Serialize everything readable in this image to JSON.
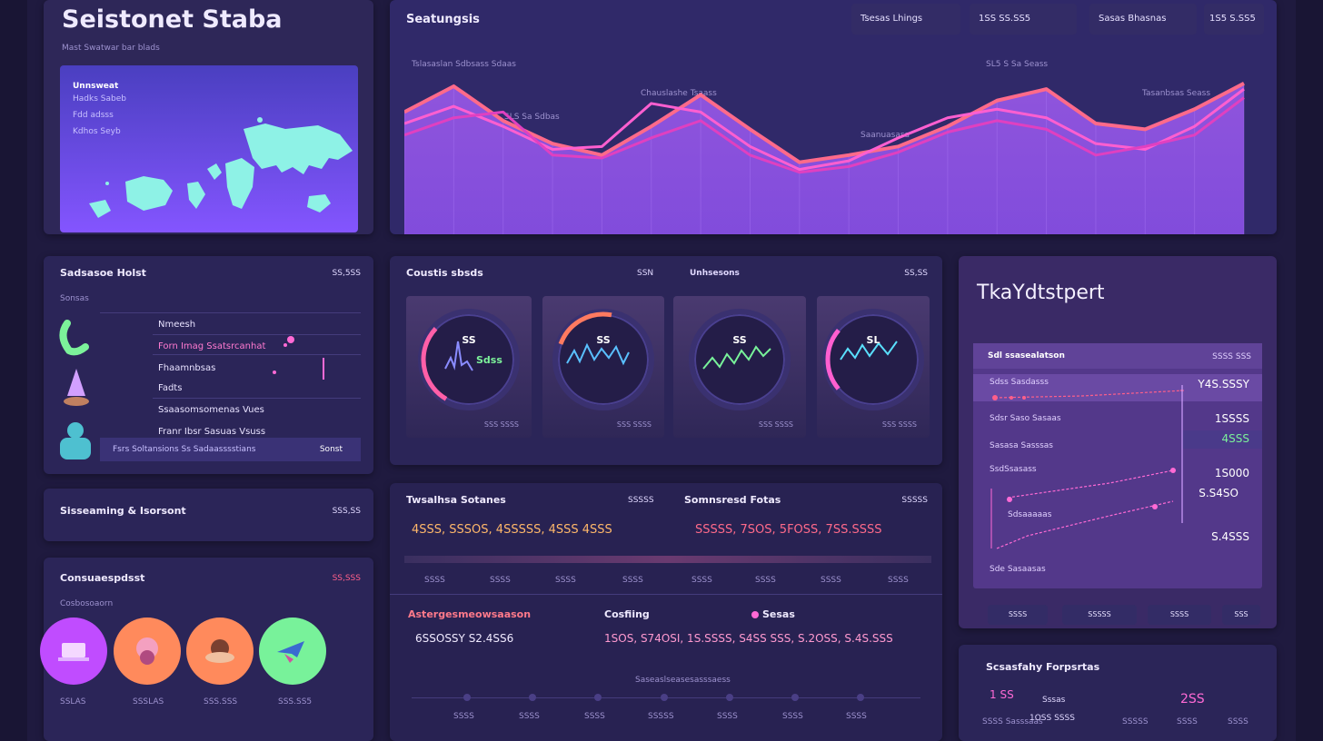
{
  "colors": {
    "accent_pink": "#ff5fa8",
    "accent_orange": "#ff8a5c",
    "accent_green": "#78f29a",
    "accent_purple": "#c04cff",
    "panel": "#2b2558"
  },
  "header": {
    "title": "Seistonet Staba",
    "subtitle": "Mast Swatwar bar blads"
  },
  "map_card": {
    "title": "Unnsweat",
    "lines": [
      "Hadks Sabeb",
      "Fdd adsss",
      "Kdhos Seyb"
    ],
    "icon": "world-map-icon"
  },
  "main_chart": {
    "title": "Seatungsis",
    "chips": [
      "Tsesas Lhings",
      "1SS SS.SS5",
      "Sasas Bhasnas",
      "1S5 S.SS5"
    ],
    "annotations": [
      "Tslasaslan Sdbsass Sdaas",
      "SLS Sa Sdbas",
      "Chauslashe Tsaass",
      "SL5 S Sa Seass",
      "Tasanbsas Seass",
      "Saanuasasa"
    ]
  },
  "chart_data": [
    {
      "type": "line",
      "x": [
        1,
        2,
        3,
        4,
        5,
        6,
        7,
        8,
        9,
        10,
        11,
        12,
        13,
        14,
        15,
        16,
        17,
        18
      ],
      "series": [
        {
          "values": [
            70,
            88,
            64,
            48,
            40,
            60,
            82,
            58,
            35,
            40,
            46,
            60,
            78,
            86,
            62,
            58,
            72,
            90
          ]
        },
        {
          "values": [
            62,
            74,
            60,
            44,
            46,
            76,
            70,
            46,
            30,
            36,
            52,
            66,
            72,
            66,
            48,
            44,
            60,
            86
          ]
        },
        {
          "values": [
            54,
            66,
            70,
            40,
            38,
            52,
            64,
            40,
            28,
            32,
            42,
            56,
            64,
            58,
            40,
            46,
            54,
            80
          ]
        }
      ],
      "ylim": [
        0,
        100
      ]
    }
  ],
  "contacts": {
    "title": "Sadsasoe Holst",
    "value": "SS,5SS",
    "sub": "Sonsas",
    "rows": [
      "Nmeesh",
      "Forn Imag Ssatsrcanhat",
      "Fhaamnbsas",
      "Fadts",
      "Ssaasomsomenas Vues",
      "Franr Ibsr Sasuas Vsuss",
      "Fsrs Soltansions Ss Sadaasssstians"
    ],
    "badge": "Sonst",
    "icons": [
      "headset-icon",
      "pen-icon",
      "person-icon"
    ]
  },
  "streaming": {
    "title": "Sisseaming & Isorsont",
    "value": "SSS,SS"
  },
  "consumer": {
    "title": "Consuaespdsst",
    "sub": "Cosbosoaorn",
    "value": "SS,SSS",
    "items": [
      {
        "label": "SSLAS",
        "icon": "laptop-icon"
      },
      {
        "label": "SSSLAS",
        "icon": "gift-icon"
      },
      {
        "label": "SSS.SSS",
        "icon": "food-icon"
      },
      {
        "label": "SSS.SS5",
        "icon": "plane-icon"
      }
    ]
  },
  "gauges": {
    "title": "Coustis sbsds",
    "v1": "SSN",
    "v2": "Unhsesons",
    "v3": "SS,SS",
    "cards": [
      {
        "value": "SS",
        "extra": "Sdss",
        "foot": "SSS SSSS"
      },
      {
        "value": "SS",
        "extra": "",
        "foot": "SSS SSSS"
      },
      {
        "value": "SS",
        "extra": "",
        "foot": "SSS SSSS"
      },
      {
        "value": "SL",
        "extra": "",
        "foot": "SSS SSSS"
      }
    ]
  },
  "trading": {
    "left_title": "Twsalhsa Sotanes",
    "left_val": "SSSSS",
    "left_nums": "4SSS, SSSOS, 4SSSSS, 4SSS 4SSS",
    "right_title": "Somnsresd Fotas",
    "right_val": "SSSSS",
    "right_nums": "SSSSS, 7SOS, 5FOSS, 7SS.SSSS",
    "ticks": [
      "SSSS",
      "SSSS",
      "SSSS",
      "SSSS",
      "SSSS",
      "SSSS",
      "SSSS",
      "SSSS"
    ]
  },
  "bottom_table": {
    "h1": "Astergesmeowsaason",
    "h2": "Cosfiing",
    "h3": "Sesas",
    "n1": "6SSOSSY S2.4SS6",
    "n2": "1SOS, S74OSI, 1S.SSSS, S4SS SSS, S.2OSS, S.4S.SSS",
    "caption": "Saseaslseasesasssaess",
    "labels": [
      "SSSS",
      "SSSS",
      "SSSS",
      "SSSSS",
      "SSSS",
      "SSSS",
      "SSSS"
    ]
  },
  "report": {
    "title": "TkaYdtstpert",
    "sub": "Sdl ssasealatson",
    "sub_val": "SSSS SSS",
    "rows": [
      {
        "label": "Sdss Sasdasss",
        "value": "Y4S.SSSY"
      },
      {
        "label": "Sdsr Saso Sasaas",
        "value": "1SSSS"
      },
      {
        "label": "Sasasa Sasssas",
        "value": "4SSS"
      },
      {
        "label": "SsdSsasass",
        "value": "1S000"
      },
      {
        "label": "",
        "value": "S.S4SO"
      },
      {
        "label": "Sdsaaaaas",
        "value": "S.4SSS"
      },
      {
        "label": "Sde Sasaasas",
        "value": ""
      }
    ],
    "buttons": [
      "SSSS",
      "SSSSS",
      "SSSS",
      "SSS"
    ]
  },
  "props": {
    "title": "Scsasfahy Forpsrtas",
    "n1": "1 SS",
    "n2": "Sssas",
    "n3": "SSSS Sasssaas",
    "n4": "1OSS SSSS",
    "n5": "2SS",
    "s1": "SSSSS",
    "s2": "SSSS",
    "s3": "SSSS"
  }
}
